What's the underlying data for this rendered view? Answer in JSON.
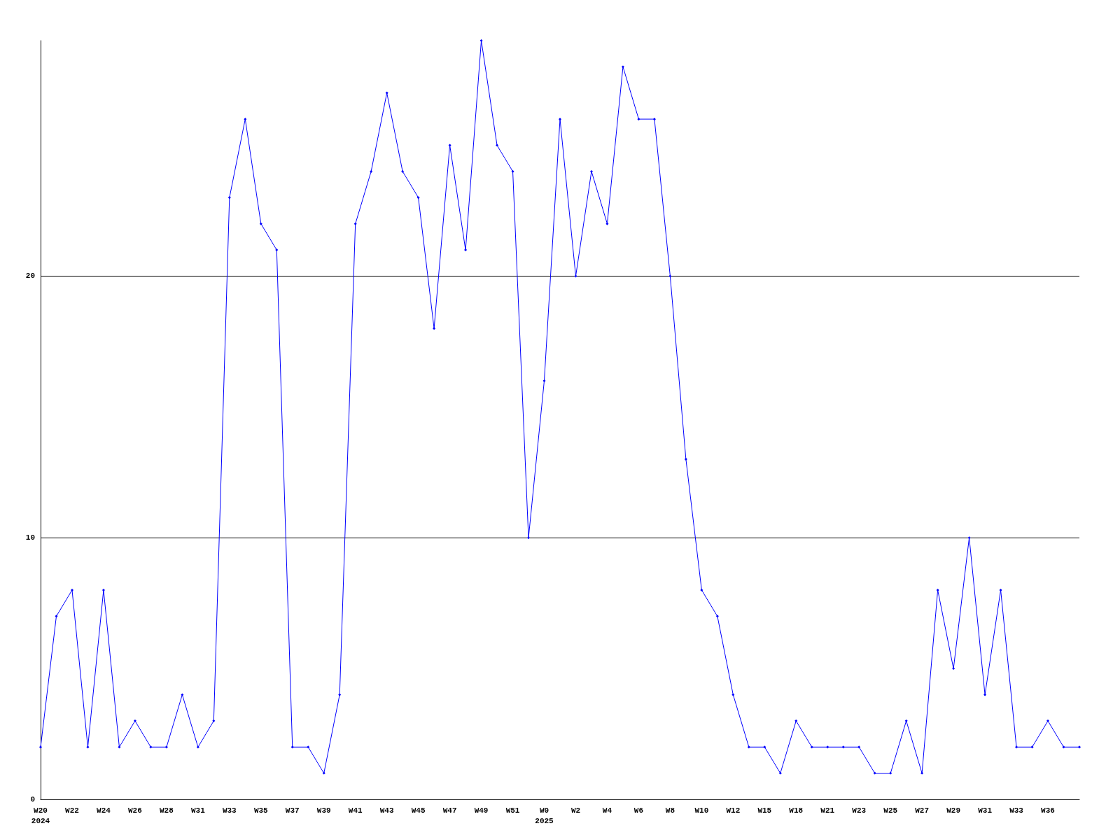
{
  "chart_data": {
    "type": "line",
    "categories": [
      "W20\n2024",
      null,
      "W22",
      null,
      "W24",
      null,
      "W26",
      null,
      "W28",
      null,
      "W31",
      null,
      "W33",
      null,
      "W35",
      null,
      "W37",
      null,
      "W39",
      null,
      "W41",
      null,
      "W43",
      null,
      "W45",
      null,
      "W47",
      null,
      "W49",
      null,
      "W51",
      null,
      "W0\n2025",
      null,
      "W2",
      null,
      "W4",
      null,
      "W6",
      null,
      "W8",
      null,
      "W10",
      null,
      "W12",
      null,
      "W15",
      null,
      "W18",
      null,
      "W21",
      null,
      "W23",
      null,
      "W25",
      null,
      "W27",
      null,
      "W29",
      null,
      "W31",
      null,
      "W33",
      null,
      "W36",
      null,
      null
    ],
    "series": [
      {
        "color": "#0000ff",
        "values": [
          2,
          7,
          8,
          2,
          8,
          2,
          3,
          2,
          2,
          4,
          2,
          3,
          23,
          26,
          22,
          21,
          2,
          2,
          1,
          4,
          22,
          24,
          27,
          24,
          23,
          18,
          25,
          21,
          29,
          25,
          24,
          10,
          16,
          26,
          20,
          24,
          22,
          28,
          26,
          26,
          20,
          13,
          8,
          7,
          4,
          2,
          2,
          1,
          3,
          2,
          2,
          2,
          2,
          1,
          1,
          3,
          1,
          8,
          5,
          10,
          4,
          8,
          2,
          2,
          3,
          2,
          2
        ]
      }
    ],
    "ylim": [
      0,
      29
    ],
    "yticks": [
      0,
      10,
      20
    ],
    "grid": "y",
    "marker": "diamond",
    "line_style": "solid"
  }
}
